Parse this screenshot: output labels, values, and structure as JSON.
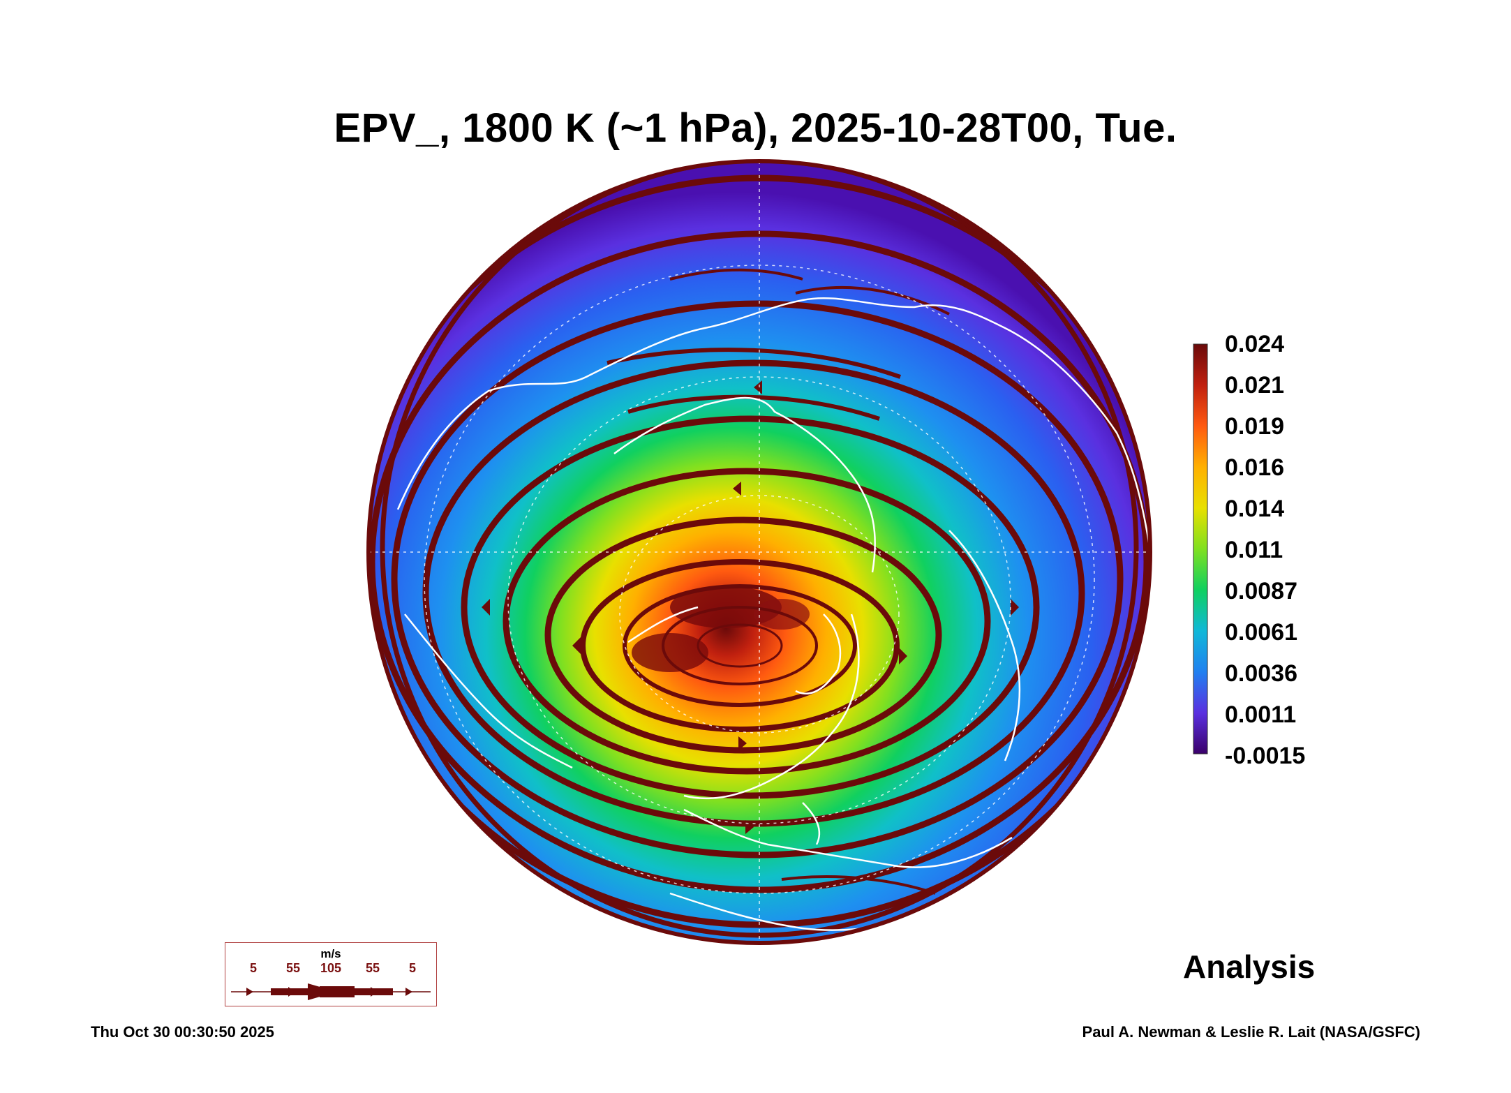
{
  "title": "EPV_, 1800 K (~1 hPa), 2025-10-28T00, Tue.",
  "colorbar": {
    "labels": [
      "0.024",
      "0.021",
      "0.019",
      "0.016",
      "0.014",
      "0.011",
      "0.0087",
      "0.0061",
      "0.0036",
      "0.0011",
      "-0.0015"
    ],
    "colors": [
      "#6a0a0a",
      "#c0200f",
      "#ff5a10",
      "#ffb000",
      "#e8e000",
      "#80e020",
      "#10d060",
      "#10b8d8",
      "#2080f0",
      "#5a30e0",
      "#3a006a"
    ]
  },
  "legend": {
    "unit": "m/s",
    "values": [
      "5",
      "55",
      "105",
      "55",
      "5"
    ]
  },
  "analysis_label": "Analysis",
  "timestamp": "Thu Oct 30 00:30:50 2025",
  "credit": "Paul A. Newman & Leslie R. Lait (NASA/GSFC)",
  "map": {
    "projection": "orthographic",
    "field": "EPV",
    "overlay": "wind streamlines",
    "coastline_color": "#ffffff",
    "streamline_color": "#6b0a0a"
  }
}
